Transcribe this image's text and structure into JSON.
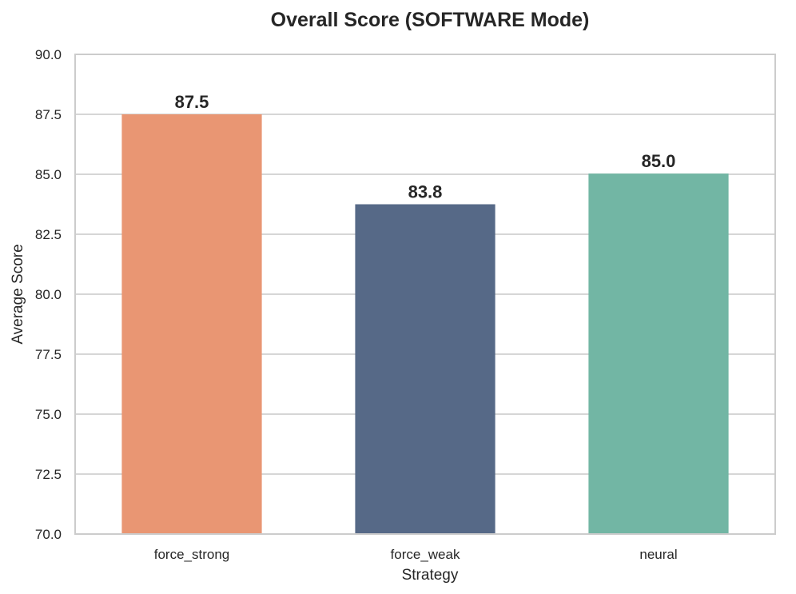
{
  "chart_data": {
    "type": "bar",
    "title": "Overall Score (SOFTWARE Mode)",
    "xlabel": "Strategy",
    "ylabel": "Average Score",
    "categories": [
      "force_strong",
      "force_weak",
      "neural"
    ],
    "values": [
      87.5,
      83.75,
      85.03
    ],
    "data_labels": [
      "87.5",
      "83.8",
      "85.0"
    ],
    "colors": [
      "#E99673",
      "#566987",
      "#72B6A4"
    ],
    "ylim": [
      70.0,
      90.0
    ],
    "yticks": [
      "70.0",
      "72.5",
      "75.0",
      "77.5",
      "80.0",
      "82.5",
      "85.0",
      "87.5",
      "90.0"
    ],
    "grid": "horizontal",
    "legend": "none"
  }
}
